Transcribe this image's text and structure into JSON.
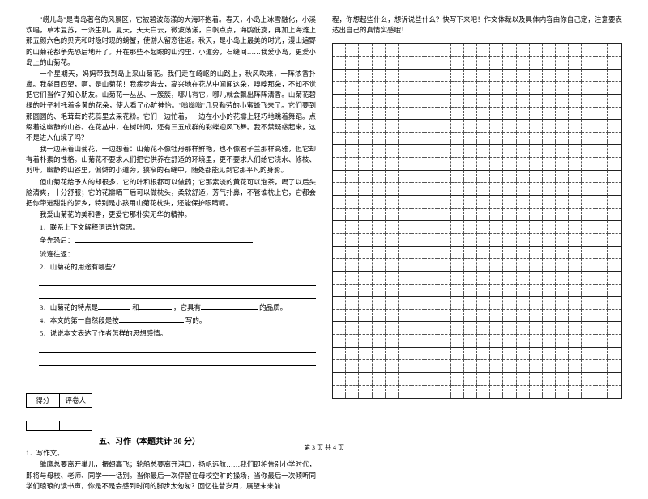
{
  "left": {
    "p1": "\"崂儿岛\"是青岛著名的风景区，它被碧波荡漾的大海环抱着。春天，小岛上冰雪融化，小溪欢唱，草木复苏，一派生机。夏天，天天白云，微波荡漾，白帆点点，海鸥低旋，再加上海滩上那五颜六色的贝壳和时隐时现的螃蟹，使游人留恋往返。秋天，是小岛上最美的时光，漫山遍野的山菊花都争先恐后地开了。开在那些不起眼的山沟里、小道旁，石缝间……我爱小岛，更爱小岛上的山菊花。",
    "p2": "一个星期天，妈妈带我到岛上采山菊花。我们走在崎岖的山路上，秋风吹来，一阵浓香扑鼻。我举目四望，啊，是山菊花！我疾步奔去，高兴地在花丛中闻闻这朵，嗅嗅那朵，不知不觉把它们当作了知心朋友。山菊花一丛丛、一簇簇，哪儿有它，哪儿就会飘出阵阵清香。山菊花碧绿的叶子衬托着金黄的花朵，使人看了心旷神怡。\"嗡嗡嗡\"几只勤劳的小蜜蜂飞来了。它们要到那圆圆的、毛茸茸的花蕊里去采花粉。它们一边忙着，一边在小小的花瓣上轻巧地跳着舞蹈。点缀着这幽静的山谷。在花丛中，在树叶间，还有三五成群的彩蝶迎风飞舞。我不禁疑惑起来，这不是进入仙境了吗？",
    "p3": "我一边采着山菊花，一边想着：山菊花不像牡丹那样鲜艳，也不像君子兰那样高雅，但它却有着朴素的性格。山菊花不要求人们把它供养在舒适的环境里，更不要求人们给它浇水、修枝、剪叶。幽静的山谷里，偏僻的小道旁，狭窄的石缝中，随处都能见到它那平凡的身影。",
    "p4": "但山菊花给予人的却很多，它的叶和根都可以做药；它那素淡的黄花可以泡茶，喝了以后头脑清爽，十分舒服；它的花瓣晒干后可以做枕头，柔软舒适，芳气扑鼻，不管谁枕上它，它都会把你带进甜甜的梦乡，特别是小孩用山菊花枕头，还能保护眼睛呢。",
    "p5": "我爱山菊花的美和香，更爱它那朴实无华的精神。",
    "q1": "1．联系上下文解释词语的意思。",
    "q1a": "争先恐后：",
    "q1b": "流连往返：",
    "q2": "2．山菊花的用途有哪些？",
    "q3_a": "3．山菊花的特点是",
    "q3_b": "和",
    "q3_c": "，它具有",
    "q3_d": "的品质。",
    "q4_a": "4．本文的第一自然段是按",
    "q4_b": "写的。",
    "q5": "5．说说本文表达了作者怎样的思想感情。",
    "score_a": "得分",
    "score_b": "评卷人",
    "section": "五、习作（本题共计 30 分）",
    "w1": "1．写作文。",
    "w2": "雏鹰总要离开巢儿，振翅高飞；轮船总要离开港口，扬帆远航……我们即将告别小学时代，即将与母校、老师、同学一一话别。当你最后一次停留在母校空旷的操场，当你最后一次倾听同学们琅琅的读书声，你是不是会感到时间的脚步太匆匆？回忆往昔岁月，展望未来前"
  },
  "right": {
    "p1": "程，你想起些什么，想诉说些什么？快写下来吧！作文体裁以及具体内容由你自己定，注意要表达出自己的真情实感哦！"
  },
  "grid": {
    "cols": 22,
    "rows": 28
  },
  "footer": "第 3 页  共 4 页"
}
